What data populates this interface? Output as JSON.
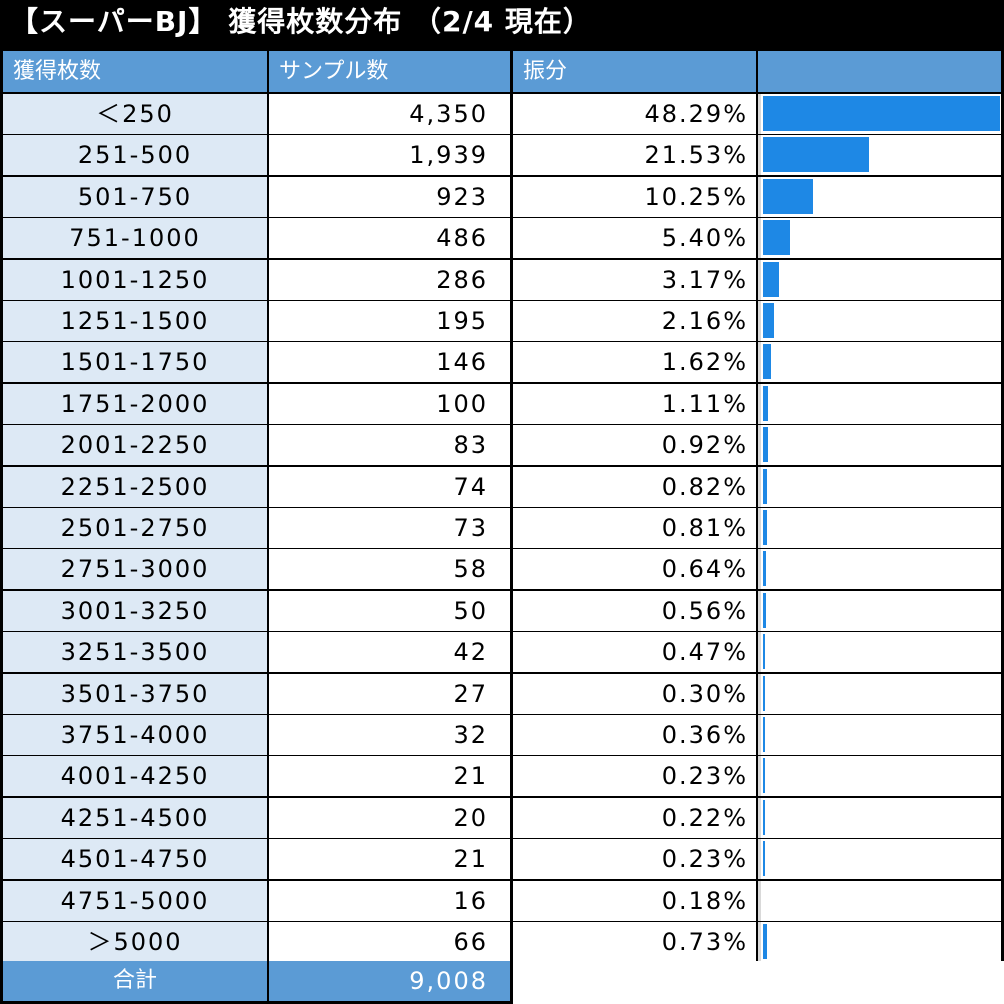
{
  "title": "【スーパーBJ】 獲得枚数分布 （2/4 現在）",
  "headers": {
    "range": "獲得枚数",
    "count": "サンプル数",
    "pct": "振分",
    "bar": ""
  },
  "colors": {
    "header_bg": "#5b9bd5",
    "range_bg": "#dde9f5",
    "bar": "#1e88e5",
    "title_bg": "#000000"
  },
  "chart_data": {
    "type": "bar",
    "orientation": "horizontal",
    "title": "【スーパーBJ】 獲得枚数分布 （2/4 現在）",
    "categories": [
      "＜250",
      "251-500",
      "501-750",
      "751-1000",
      "1001-1250",
      "1251-1500",
      "1501-1750",
      "1751-2000",
      "2001-2250",
      "2251-2500",
      "2501-2750",
      "2751-3000",
      "3001-3250",
      "3251-3500",
      "3501-3750",
      "3751-4000",
      "4001-4250",
      "4251-4500",
      "4501-4750",
      "4751-5000",
      "＞5000"
    ],
    "counts_text": [
      "4,350",
      "1,939",
      "923",
      "486",
      "286",
      "195",
      "146",
      "100",
      "83",
      "74",
      "73",
      "58",
      "50",
      "42",
      "27",
      "32",
      "21",
      "20",
      "21",
      "16",
      "66"
    ],
    "pct_text": [
      "48.29%",
      "21.53%",
      "10.25%",
      "5.40%",
      "3.17%",
      "2.16%",
      "1.62%",
      "1.11%",
      "0.92%",
      "0.82%",
      "0.81%",
      "0.64%",
      "0.56%",
      "0.47%",
      "0.30%",
      "0.36%",
      "0.23%",
      "0.22%",
      "0.23%",
      "0.18%",
      "0.73%"
    ],
    "values": [
      48.29,
      21.53,
      10.25,
      5.4,
      3.17,
      2.16,
      1.62,
      1.11,
      0.92,
      0.82,
      0.81,
      0.64,
      0.56,
      0.47,
      0.3,
      0.36,
      0.23,
      0.22,
      0.23,
      0.18,
      0.73
    ],
    "xlim": [
      0,
      48.29
    ]
  },
  "total": {
    "label": "合計",
    "value": "9,008"
  }
}
